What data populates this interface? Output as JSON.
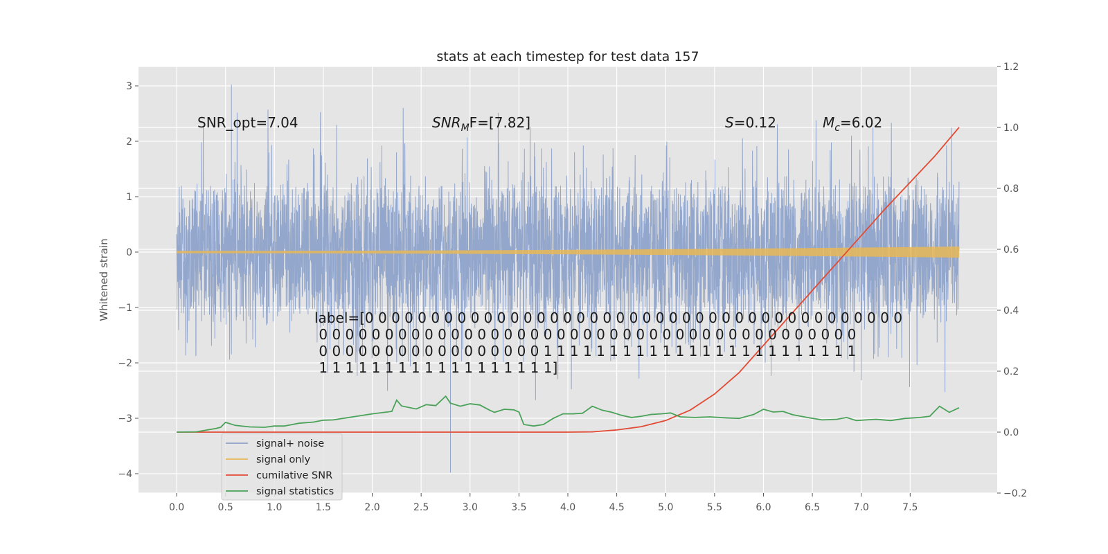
{
  "chart_data": {
    "type": "line",
    "title": "stats at each timestep for test data 157",
    "ylabel": "Whitened strain",
    "xlim": [
      -0.39,
      8.39
    ],
    "ylim": [
      -4.35,
      3.35
    ],
    "y2lim": [
      -0.2,
      1.2
    ],
    "grid": true,
    "legend_position": "lower-left",
    "x_ticks": [
      "0.0",
      "0.5",
      "1.0",
      "1.5",
      "2.0",
      "2.5",
      "3.0",
      "3.5",
      "4.0",
      "4.5",
      "5.0",
      "5.5",
      "6.0",
      "6.5",
      "7.0",
      "7.5"
    ],
    "y_ticks": [
      "−4",
      "−3",
      "−2",
      "−1",
      "0",
      "1",
      "2",
      "3"
    ],
    "y2_ticks": [
      "−0.2",
      "0.0",
      "0.2",
      "0.4",
      "0.6",
      "0.8",
      "1.0",
      "1.2"
    ],
    "annotations": {
      "snr_opt": "SNR_opt=7.04",
      "snr_mf_base": "SNR",
      "snr_mf_sub": "M",
      "snr_mf_rest": "F=[7.82]",
      "s_var": "S",
      "s_val": "=0.12",
      "mc_var": "M",
      "mc_sub": "c",
      "mc_val": "=6.02",
      "label_lines": [
        "label=[0 0 0 0 0 0 0 0 0 0 0 0 0 0 0 0 0 0 0 0 0 0 0 0 0 0 0 0 0 0 0 0 0 0 0 0 0 0 0 0 0",
        " 0 0 0 0 0 0 0 0 0 0 0 0 0 0 0 0 0 0 0 0 0 0 0 0 0 0 0 0 0 0 0 0 0 0 0 0 0 0 0 0 0",
        " 0 0 0 0 0 0 0 0 0 0 0 0 0 0 0 0 0 1 1 1 1 1 1 1 1 1 1 1 1 1 1 1 1 1 1 1 1 1 1 1 1",
        " 1 1 1 1 1 1 1 1 1 1 1 1 1 1 1 1 1 1]"
      ]
    },
    "series": [
      {
        "name": "signal+ noise",
        "color": "#8ea2c9",
        "axis": "left",
        "description": "dense whitened noise, x 0 to 8, mostly within ±1.1, spikes to about 3.0 and -4.0",
        "x_range": [
          0,
          8
        ],
        "peak_max": 3.02,
        "peak_min": -3.98
      },
      {
        "name": "signal only",
        "color": "#e8b757",
        "axis": "left",
        "description": "chirp signal, amplitude growing from ~0.02 to ~0.1",
        "x_range": [
          0,
          8
        ],
        "amplitude_start": 0.02,
        "amplitude_end": 0.1
      },
      {
        "name": "cumilative SNR",
        "color": "#e24a33",
        "axis": "right",
        "x": [
          0,
          0.5,
          1.0,
          1.5,
          2.0,
          2.5,
          3.0,
          3.5,
          4.0,
          4.25,
          4.5,
          4.75,
          5.0,
          5.25,
          5.5,
          5.75,
          6.0,
          6.25,
          6.5,
          6.75,
          7.0,
          7.25,
          7.5,
          7.75,
          8.0
        ],
        "values": [
          0.0,
          0.0,
          0.0,
          0.0,
          0.0,
          0.0,
          0.0,
          0.0,
          0.0,
          0.001,
          0.007,
          0.018,
          0.038,
          0.072,
          0.125,
          0.195,
          0.285,
          0.375,
          0.465,
          0.555,
          0.645,
          0.735,
          0.82,
          0.905,
          1.0
        ]
      },
      {
        "name": "signal statistics",
        "color": "#4aa259",
        "axis": "right",
        "x": [
          0,
          0.2,
          0.4,
          0.45,
          0.5,
          0.6,
          0.75,
          0.9,
          1.0,
          1.1,
          1.25,
          1.4,
          1.5,
          1.6,
          1.8,
          2.0,
          2.2,
          2.25,
          2.3,
          2.45,
          2.55,
          2.65,
          2.75,
          2.8,
          2.9,
          3.0,
          3.1,
          3.2,
          3.25,
          3.35,
          3.45,
          3.5,
          3.55,
          3.65,
          3.75,
          3.85,
          3.95,
          4.05,
          4.15,
          4.25,
          4.35,
          4.45,
          4.55,
          4.65,
          4.75,
          4.85,
          4.95,
          5.05,
          5.15,
          5.3,
          5.45,
          5.6,
          5.75,
          5.9,
          6.0,
          6.1,
          6.2,
          6.3,
          6.45,
          6.6,
          6.75,
          6.85,
          6.95,
          7.05,
          7.15,
          7.3,
          7.45,
          7.6,
          7.7,
          7.8,
          7.9,
          8.0
        ],
        "values": [
          0.0,
          0.001,
          0.012,
          0.016,
          0.032,
          0.022,
          0.017,
          0.016,
          0.02,
          0.02,
          0.029,
          0.033,
          0.039,
          0.04,
          0.05,
          0.06,
          0.068,
          0.105,
          0.086,
          0.076,
          0.09,
          0.087,
          0.118,
          0.095,
          0.085,
          0.093,
          0.089,
          0.072,
          0.065,
          0.075,
          0.073,
          0.066,
          0.025,
          0.02,
          0.025,
          0.045,
          0.06,
          0.06,
          0.062,
          0.085,
          0.072,
          0.065,
          0.055,
          0.048,
          0.052,
          0.058,
          0.06,
          0.063,
          0.05,
          0.048,
          0.05,
          0.047,
          0.045,
          0.058,
          0.075,
          0.066,
          0.068,
          0.057,
          0.048,
          0.04,
          0.042,
          0.048,
          0.038,
          0.04,
          0.042,
          0.038,
          0.045,
          0.048,
          0.052,
          0.085,
          0.065,
          0.08
        ]
      }
    ]
  }
}
